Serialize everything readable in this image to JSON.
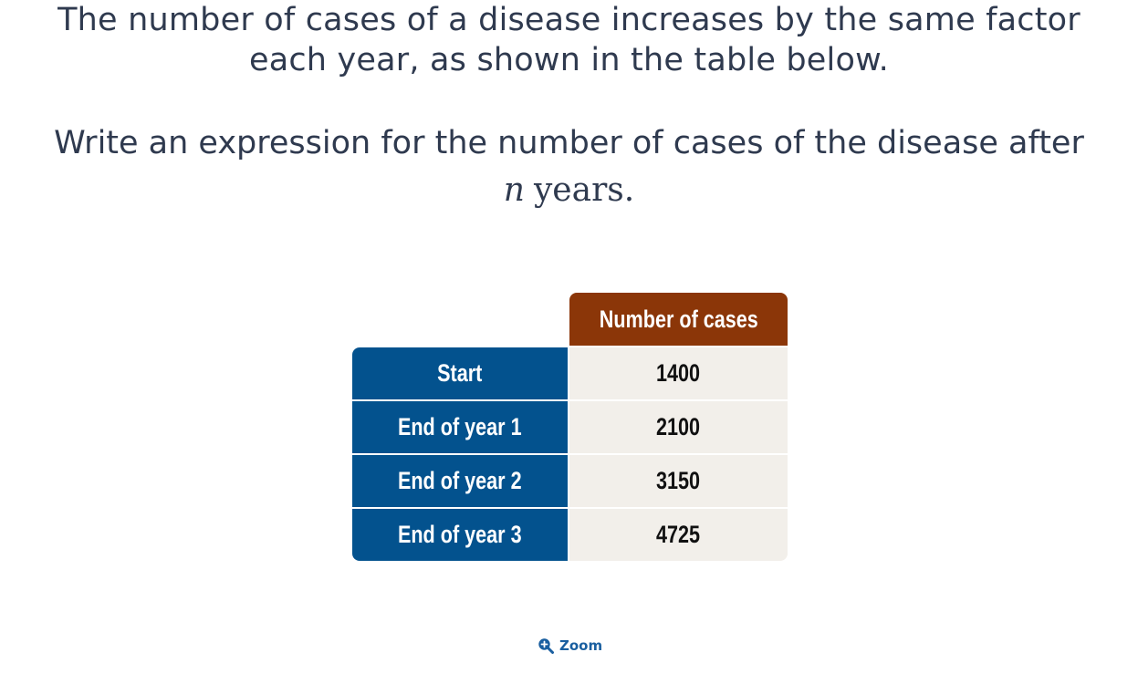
{
  "intro_text": "The number of cases of a disease increases by the same factor each year, as shown in the table below.",
  "question": {
    "text": "Write an expression for the number of cases of the disease after",
    "variable": "n",
    "suffix": "years."
  },
  "table": {
    "header": "Number of cases",
    "rows": [
      {
        "label": "Start",
        "value": "1400"
      },
      {
        "label": "End of year 1",
        "value": "2100"
      },
      {
        "label": "End of year 2",
        "value": "3150"
      },
      {
        "label": "End of year 3",
        "value": "4725"
      }
    ]
  },
  "zoom": {
    "label": "Zoom",
    "icon": "zoom-in-icon"
  },
  "colors": {
    "header": "#8b3608",
    "label_column": "#03528e",
    "value_column": "#f2efea",
    "zoom": "#1a5fa0"
  }
}
